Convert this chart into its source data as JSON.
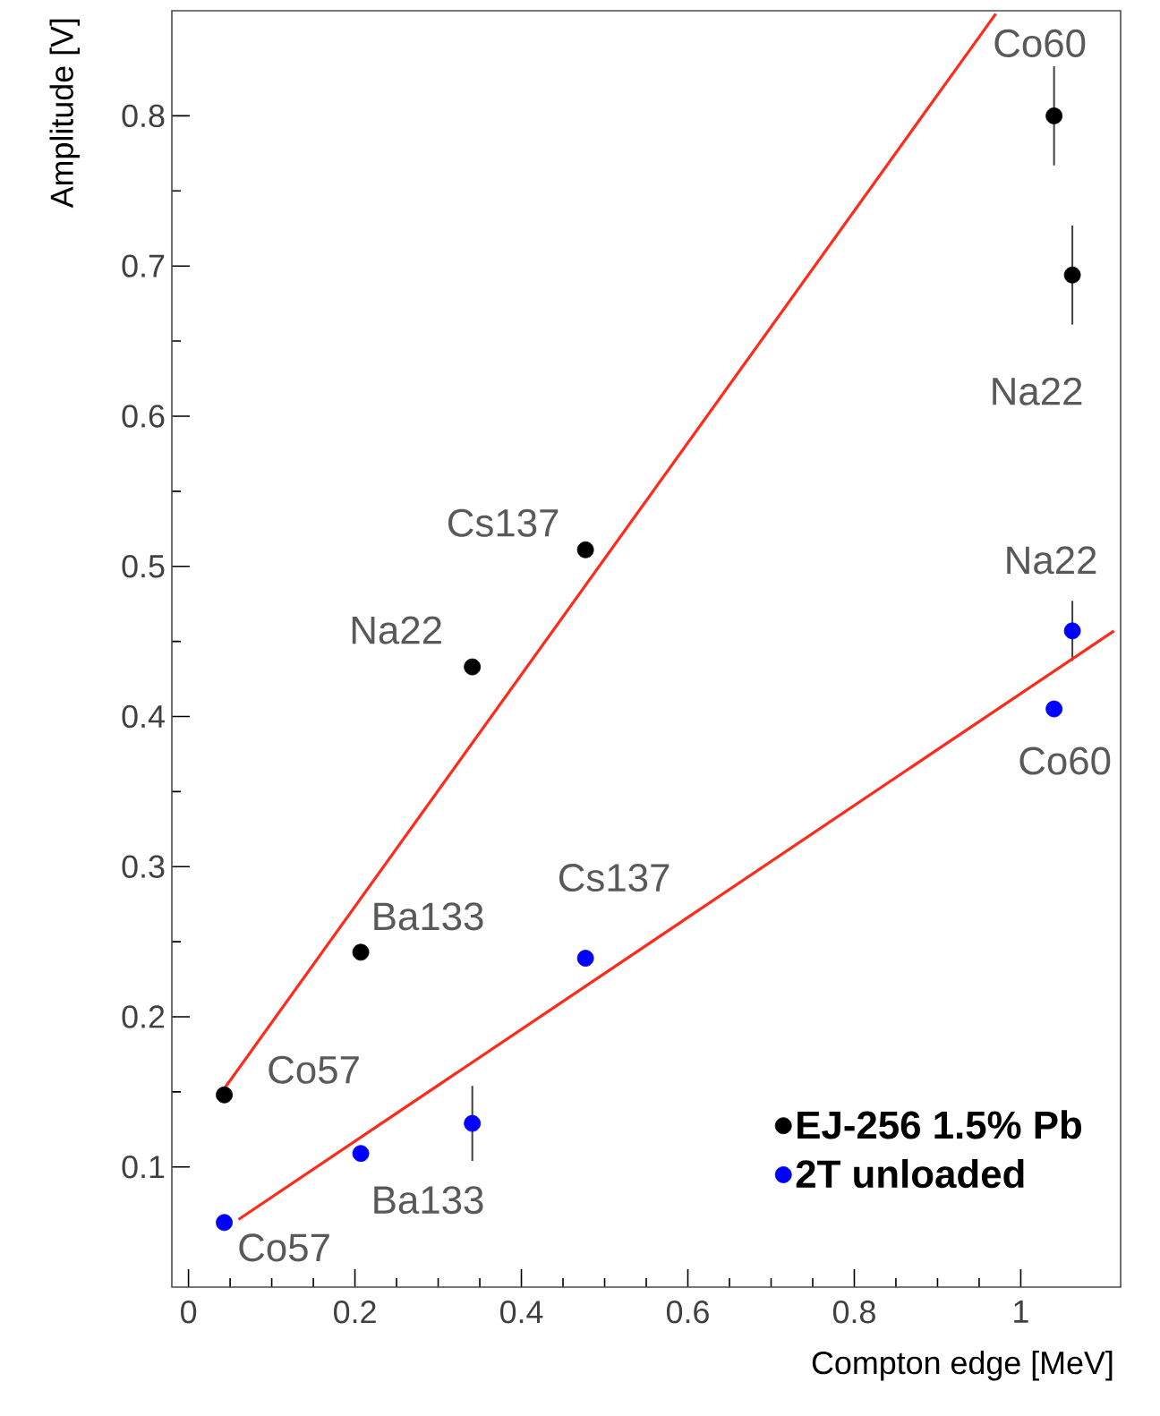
{
  "chart_data": {
    "type": "scatter",
    "xlabel": "Compton edge [MeV]",
    "ylabel": "Amplitude [V]",
    "xlim": [
      -0.02,
      1.12
    ],
    "ylim": [
      0.02,
      0.87
    ],
    "xticks": [
      0,
      0.2,
      0.4,
      0.6,
      0.8,
      1
    ],
    "yticks": [
      0.1,
      0.2,
      0.3,
      0.4,
      0.5,
      0.6,
      0.7,
      0.8
    ],
    "grid": false,
    "legend": "bottom right",
    "marker": "circle",
    "series": [
      {
        "name": "EJ-256 1.5% Pb",
        "color": "#000000",
        "x": [
          0.043,
          0.207,
          0.341,
          0.477,
          1.04,
          1.062
        ],
        "values": [
          0.148,
          0.243,
          0.433,
          0.511,
          0.8,
          0.694
        ],
        "errors": [
          null,
          null,
          null,
          null,
          0.033,
          0.033
        ]
      },
      {
        "name": "2T unloaded",
        "color": "#0000ff",
        "x": [
          0.043,
          0.207,
          0.341,
          0.477,
          1.04,
          1.062
        ],
        "values": [
          0.063,
          0.109,
          0.129,
          0.239,
          0.405,
          0.457
        ],
        "errors": [
          null,
          null,
          0.025,
          null,
          null,
          0.02
        ]
      },
      {
        "type": "line",
        "color": "#ff2a1a",
        "marker": "none",
        "x": [
          0.044,
          0.97
        ],
        "values": [
          0.153,
          0.868
        ]
      },
      {
        "type": "line",
        "color": "#ff2a1a",
        "marker": "none",
        "x": [
          0.06,
          1.112
        ],
        "values": [
          0.065,
          0.457
        ]
      }
    ],
    "annotations": [
      {
        "text": "Co57",
        "x": 0.043,
        "y": 0.148
      },
      {
        "text": "Ba133",
        "x": 0.207,
        "y": 0.243
      },
      {
        "text": "Na22",
        "x": 0.341,
        "y": 0.433
      },
      {
        "text": "Cs137",
        "x": 0.477,
        "y": 0.511
      },
      {
        "text": "Co60",
        "x": 1.04,
        "y": 0.8
      },
      {
        "text": "Na22",
        "x": 1.062,
        "y": 0.694
      },
      {
        "text": "Co57",
        "x": 0.043,
        "y": 0.063
      },
      {
        "text": "Ba133",
        "x": 0.207,
        "y": 0.109
      },
      {
        "text": "Cs137",
        "x": 0.477,
        "y": 0.239
      },
      {
        "text": "Co60",
        "x": 1.04,
        "y": 0.405
      },
      {
        "text": "Na22",
        "x": 1.062,
        "y": 0.457
      }
    ]
  }
}
